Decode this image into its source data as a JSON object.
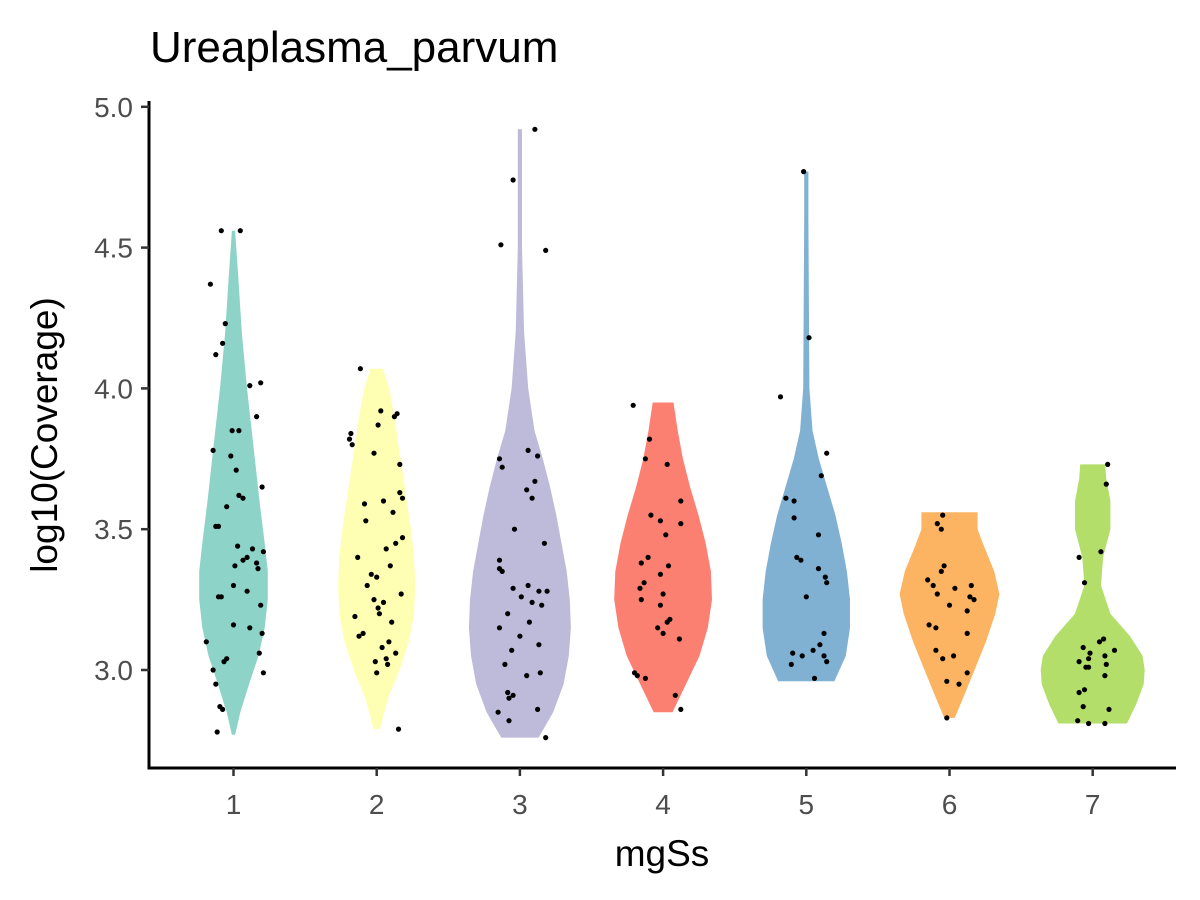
{
  "chart_data": {
    "type": "violin",
    "title": "Ureaplasma_parvum",
    "xlabel": "mgSs",
    "ylabel": "log10(Coverage)",
    "categories": [
      "1",
      "2",
      "3",
      "4",
      "5",
      "6",
      "7"
    ],
    "ylim": [
      2.76,
      5.02
    ],
    "yticks": [
      3.0,
      3.5,
      4.0,
      4.5,
      5.0
    ],
    "ytick_labels": [
      "3.0",
      "3.5",
      "4.0",
      "4.5",
      "5.0"
    ],
    "grid": false,
    "legend": "none",
    "violins": [
      {
        "category": "1",
        "color": "#8dd3c7",
        "min": 2.77,
        "max": 4.56,
        "profile": [
          [
            2.77,
            0.03
          ],
          [
            2.85,
            0.13
          ],
          [
            2.95,
            0.3
          ],
          [
            3.05,
            0.48
          ],
          [
            3.15,
            0.6
          ],
          [
            3.25,
            0.66
          ],
          [
            3.35,
            0.66
          ],
          [
            3.45,
            0.6
          ],
          [
            3.6,
            0.5
          ],
          [
            3.8,
            0.38
          ],
          [
            4.0,
            0.26
          ],
          [
            4.2,
            0.16
          ],
          [
            4.4,
            0.09
          ],
          [
            4.56,
            0.03
          ]
        ]
      },
      {
        "category": "2",
        "color": "#ffffb3",
        "min": 2.79,
        "max": 4.07,
        "profile": [
          [
            2.79,
            0.06
          ],
          [
            2.9,
            0.22
          ],
          [
            3.0,
            0.44
          ],
          [
            3.1,
            0.62
          ],
          [
            3.2,
            0.72
          ],
          [
            3.3,
            0.74
          ],
          [
            3.4,
            0.72
          ],
          [
            3.5,
            0.66
          ],
          [
            3.6,
            0.58
          ],
          [
            3.7,
            0.5
          ],
          [
            3.8,
            0.42
          ],
          [
            3.9,
            0.34
          ],
          [
            4.0,
            0.24
          ],
          [
            4.07,
            0.12
          ]
        ]
      },
      {
        "category": "3",
        "color": "#bebada",
        "min": 2.76,
        "max": 4.92,
        "profile": [
          [
            2.76,
            0.36
          ],
          [
            2.85,
            0.64
          ],
          [
            2.95,
            0.84
          ],
          [
            3.05,
            0.94
          ],
          [
            3.15,
            0.98
          ],
          [
            3.25,
            0.96
          ],
          [
            3.35,
            0.9
          ],
          [
            3.45,
            0.8
          ],
          [
            3.55,
            0.7
          ],
          [
            3.65,
            0.58
          ],
          [
            3.75,
            0.44
          ],
          [
            3.85,
            0.28
          ],
          [
            4.0,
            0.16
          ],
          [
            4.2,
            0.08
          ],
          [
            4.5,
            0.04
          ],
          [
            4.7,
            0.04
          ],
          [
            4.92,
            0.04
          ]
        ]
      },
      {
        "category": "4",
        "color": "#fb8072",
        "min": 2.85,
        "max": 3.95,
        "profile": [
          [
            2.85,
            0.18
          ],
          [
            2.95,
            0.44
          ],
          [
            3.05,
            0.7
          ],
          [
            3.15,
            0.86
          ],
          [
            3.25,
            0.94
          ],
          [
            3.35,
            0.92
          ],
          [
            3.45,
            0.82
          ],
          [
            3.55,
            0.68
          ],
          [
            3.65,
            0.52
          ],
          [
            3.75,
            0.38
          ],
          [
            3.85,
            0.28
          ],
          [
            3.95,
            0.2
          ]
        ]
      },
      {
        "category": "5",
        "color": "#80b1d3",
        "min": 2.96,
        "max": 4.77,
        "profile": [
          [
            2.96,
            0.54
          ],
          [
            3.05,
            0.76
          ],
          [
            3.15,
            0.84
          ],
          [
            3.25,
            0.84
          ],
          [
            3.35,
            0.78
          ],
          [
            3.45,
            0.68
          ],
          [
            3.55,
            0.56
          ],
          [
            3.65,
            0.4
          ],
          [
            3.75,
            0.24
          ],
          [
            3.85,
            0.12
          ],
          [
            4.0,
            0.06
          ],
          [
            4.3,
            0.05
          ],
          [
            4.6,
            0.04
          ],
          [
            4.77,
            0.04
          ]
        ]
      },
      {
        "category": "6",
        "color": "#fdb462",
        "min": 2.83,
        "max": 3.56,
        "profile": [
          [
            2.83,
            0.1
          ],
          [
            2.9,
            0.26
          ],
          [
            3.0,
            0.48
          ],
          [
            3.1,
            0.7
          ],
          [
            3.2,
            0.88
          ],
          [
            3.27,
            0.96
          ],
          [
            3.35,
            0.86
          ],
          [
            3.45,
            0.64
          ],
          [
            3.5,
            0.54
          ],
          [
            3.56,
            0.54
          ]
        ]
      },
      {
        "category": "7",
        "color": "#b3de69",
        "min": 2.81,
        "max": 3.73,
        "profile": [
          [
            2.81,
            0.66
          ],
          [
            2.88,
            0.84
          ],
          [
            2.95,
            0.98
          ],
          [
            3.0,
            1.0
          ],
          [
            3.05,
            0.96
          ],
          [
            3.12,
            0.72
          ],
          [
            3.2,
            0.34
          ],
          [
            3.3,
            0.16
          ],
          [
            3.4,
            0.2
          ],
          [
            3.5,
            0.34
          ],
          [
            3.6,
            0.34
          ],
          [
            3.68,
            0.26
          ],
          [
            3.73,
            0.24
          ]
        ]
      }
    ],
    "points": [
      {
        "category": "1",
        "values": [
          4.56,
          4.56,
          4.37,
          4.23,
          4.16,
          4.12,
          4.02,
          4.01,
          3.9,
          3.85,
          3.85,
          3.78,
          3.76,
          3.71,
          3.65,
          3.62,
          3.61,
          3.58,
          3.51,
          3.51,
          3.44,
          3.43,
          3.42,
          3.4,
          3.39,
          3.38,
          3.37,
          3.36,
          3.3,
          3.28,
          3.26,
          3.26,
          3.23,
          3.16,
          3.15,
          3.13,
          3.1,
          3.06,
          3.04,
          3.03,
          3.0,
          2.99,
          2.95,
          2.87,
          2.86,
          2.78
        ],
        "jitter": [
          -0.09,
          0.05,
          -0.17,
          -0.06,
          -0.08,
          -0.13,
          0.2,
          0.12,
          0.17,
          -0.01,
          0.04,
          -0.15,
          -0.02,
          0.02,
          0.21,
          0.04,
          0.07,
          -0.05,
          -0.11,
          -0.13,
          0.03,
          0.14,
          0.22,
          0.1,
          0.07,
          0.17,
          0.01,
          0.18,
          0.0,
          0.1,
          -0.09,
          -0.11,
          0.2,
          0.0,
          0.12,
          0.21,
          -0.2,
          0.19,
          -0.05,
          -0.07,
          -0.15,
          0.22,
          -0.13,
          -0.1,
          -0.08,
          -0.12
        ]
      },
      {
        "category": "2",
        "values": [
          4.07,
          3.92,
          3.91,
          3.9,
          3.87,
          3.84,
          3.82,
          3.8,
          3.77,
          3.73,
          3.63,
          3.61,
          3.6,
          3.59,
          3.56,
          3.53,
          3.47,
          3.45,
          3.43,
          3.4,
          3.37,
          3.34,
          3.33,
          3.3,
          3.27,
          3.25,
          3.24,
          3.22,
          3.2,
          3.19,
          3.17,
          3.13,
          3.12,
          3.1,
          3.08,
          3.06,
          3.04,
          3.03,
          3.02,
          2.99,
          2.79
        ],
        "jitter": [
          -0.12,
          0.03,
          0.15,
          0.13,
          0.01,
          -0.19,
          -0.2,
          -0.18,
          -0.02,
          0.17,
          0.17,
          0.19,
          0.05,
          -0.09,
          0.12,
          -0.08,
          0.19,
          0.14,
          0.07,
          -0.14,
          0.1,
          -0.04,
          0.0,
          -0.07,
          0.18,
          -0.02,
          0.05,
          0.01,
          0.02,
          -0.16,
          0.11,
          -0.1,
          -0.13,
          0.09,
          0.04,
          0.14,
          0.07,
          -0.01,
          0.08,
          0.0,
          0.16
        ],
        "note": ""
      },
      {
        "category": "3",
        "values": [
          4.92,
          4.74,
          4.51,
          4.49,
          3.78,
          3.76,
          3.75,
          3.72,
          3.67,
          3.64,
          3.61,
          3.5,
          3.45,
          3.39,
          3.36,
          3.35,
          3.3,
          3.29,
          3.28,
          3.28,
          3.26,
          3.24,
          3.23,
          3.2,
          3.17,
          3.15,
          3.12,
          3.09,
          3.07,
          3.02,
          2.99,
          2.98,
          2.92,
          2.91,
          2.9,
          2.86,
          2.85,
          2.82,
          2.76
        ],
        "jitter": [
          0.11,
          -0.05,
          -0.14,
          0.19,
          0.06,
          0.13,
          -0.15,
          -0.13,
          0.11,
          0.05,
          0.09,
          -0.04,
          0.18,
          -0.15,
          -0.15,
          -0.13,
          0.06,
          -0.05,
          0.14,
          0.2,
          0.01,
          0.09,
          0.16,
          -0.09,
          0.07,
          -0.15,
          0.0,
          0.14,
          -0.06,
          -0.11,
          0.15,
          0.05,
          -0.09,
          -0.05,
          -0.08,
          0.13,
          -0.16,
          -0.08,
          0.19
        ]
      },
      {
        "category": "4",
        "values": [
          3.94,
          3.82,
          3.75,
          3.73,
          3.6,
          3.55,
          3.53,
          3.52,
          3.48,
          3.4,
          3.38,
          3.37,
          3.34,
          3.31,
          3.29,
          3.27,
          3.25,
          3.23,
          3.18,
          3.17,
          3.15,
          3.13,
          3.11,
          2.99,
          2.98,
          2.97,
          2.91,
          2.86
        ],
        "jitter": [
          -0.22,
          -0.1,
          -0.13,
          0.03,
          0.13,
          -0.09,
          -0.02,
          0.13,
          0.02,
          -0.11,
          -0.16,
          0.04,
          -0.02,
          -0.14,
          -0.17,
          0.0,
          -0.16,
          -0.02,
          0.05,
          0.03,
          -0.04,
          0.0,
          0.12,
          -0.21,
          -0.19,
          -0.13,
          0.09,
          0.13
        ]
      },
      {
        "category": "5",
        "values": [
          4.77,
          4.18,
          3.97,
          3.77,
          3.69,
          3.61,
          3.6,
          3.54,
          3.48,
          3.4,
          3.39,
          3.36,
          3.33,
          3.31,
          3.26,
          3.13,
          3.09,
          3.07,
          3.06,
          3.05,
          3.05,
          3.03,
          3.02,
          2.97
        ],
        "jitter": [
          -0.02,
          0.02,
          -0.19,
          0.15,
          0.11,
          -0.15,
          -0.09,
          -0.09,
          0.09,
          -0.07,
          -0.04,
          0.09,
          0.14,
          0.15,
          0.0,
          0.13,
          0.1,
          0.05,
          -0.1,
          0.13,
          -0.03,
          0.15,
          -0.11,
          0.06
        ]
      },
      {
        "category": "6",
        "values": [
          3.55,
          3.52,
          3.5,
          3.37,
          3.35,
          3.32,
          3.3,
          3.3,
          3.29,
          3.27,
          3.26,
          3.25,
          3.23,
          3.21,
          3.16,
          3.15,
          3.13,
          3.07,
          3.05,
          3.04,
          2.99,
          2.96,
          2.95,
          2.83
        ],
        "jitter": [
          -0.05,
          -0.09,
          -0.06,
          -0.04,
          -0.06,
          -0.16,
          0.16,
          -0.12,
          0.04,
          -0.09,
          0.15,
          0.18,
          0.0,
          0.13,
          -0.15,
          -0.1,
          0.13,
          -0.1,
          0.03,
          -0.05,
          0.13,
          -0.02,
          0.07,
          -0.02
        ]
      },
      {
        "category": "7",
        "values": [
          3.73,
          3.66,
          3.42,
          3.4,
          3.31,
          3.11,
          3.1,
          3.08,
          3.07,
          3.06,
          3.05,
          3.04,
          3.03,
          3.02,
          3.01,
          3.01,
          2.98,
          2.93,
          2.92,
          2.87,
          2.86,
          2.82,
          2.81,
          2.81
        ],
        "jitter": [
          0.11,
          0.1,
          0.06,
          -0.1,
          -0.06,
          0.08,
          0.05,
          -0.07,
          0.16,
          -0.02,
          0.09,
          -0.03,
          -0.1,
          0.1,
          -0.05,
          -0.03,
          0.09,
          -0.06,
          -0.1,
          -0.07,
          0.12,
          -0.11,
          -0.03,
          0.09
        ]
      }
    ]
  }
}
